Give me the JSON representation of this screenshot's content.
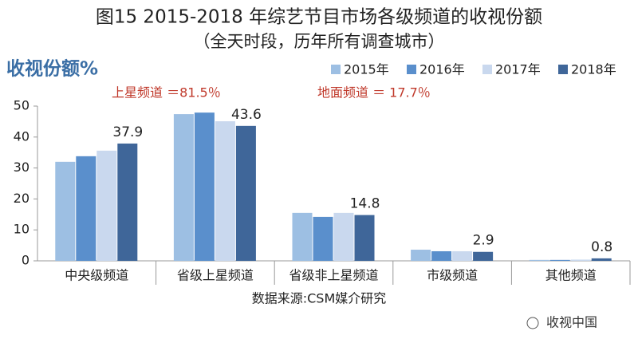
{
  "chart_data": {
    "type": "bar",
    "title": "图15 2015-2018 年综艺节目市场各级频道的收视份额",
    "subtitle": "（全天时段，历年所有调查城市）",
    "y_label": "收视份额%",
    "annotations": [
      "上星频道 ＝81.5％",
      "地面频道 ＝ 17.7％"
    ],
    "source": "数据来源:CSM媒介研究",
    "watermark": "收视中国",
    "categories": [
      "中央级频道",
      "省级上星频道",
      "省级非上星频道",
      "市级频道",
      "其他频道"
    ],
    "series": [
      {
        "name": "2015年",
        "color": "#9dbfe3",
        "values": [
          32.0,
          47.4,
          15.5,
          3.6,
          0.3
        ]
      },
      {
        "name": "2016年",
        "color": "#5a8fcc",
        "values": [
          33.8,
          47.9,
          14.2,
          3.1,
          0.3
        ]
      },
      {
        "name": "2017年",
        "color": "#c9d8ee",
        "values": [
          35.6,
          45.1,
          15.5,
          3.1,
          0.4
        ]
      },
      {
        "name": "2018年",
        "color": "#3f6699",
        "values": [
          37.9,
          43.6,
          14.8,
          2.9,
          0.8
        ]
      }
    ],
    "ylim": [
      0,
      50
    ],
    "yticks": [
      0,
      10,
      20,
      30,
      40,
      50
    ],
    "grid": false
  }
}
